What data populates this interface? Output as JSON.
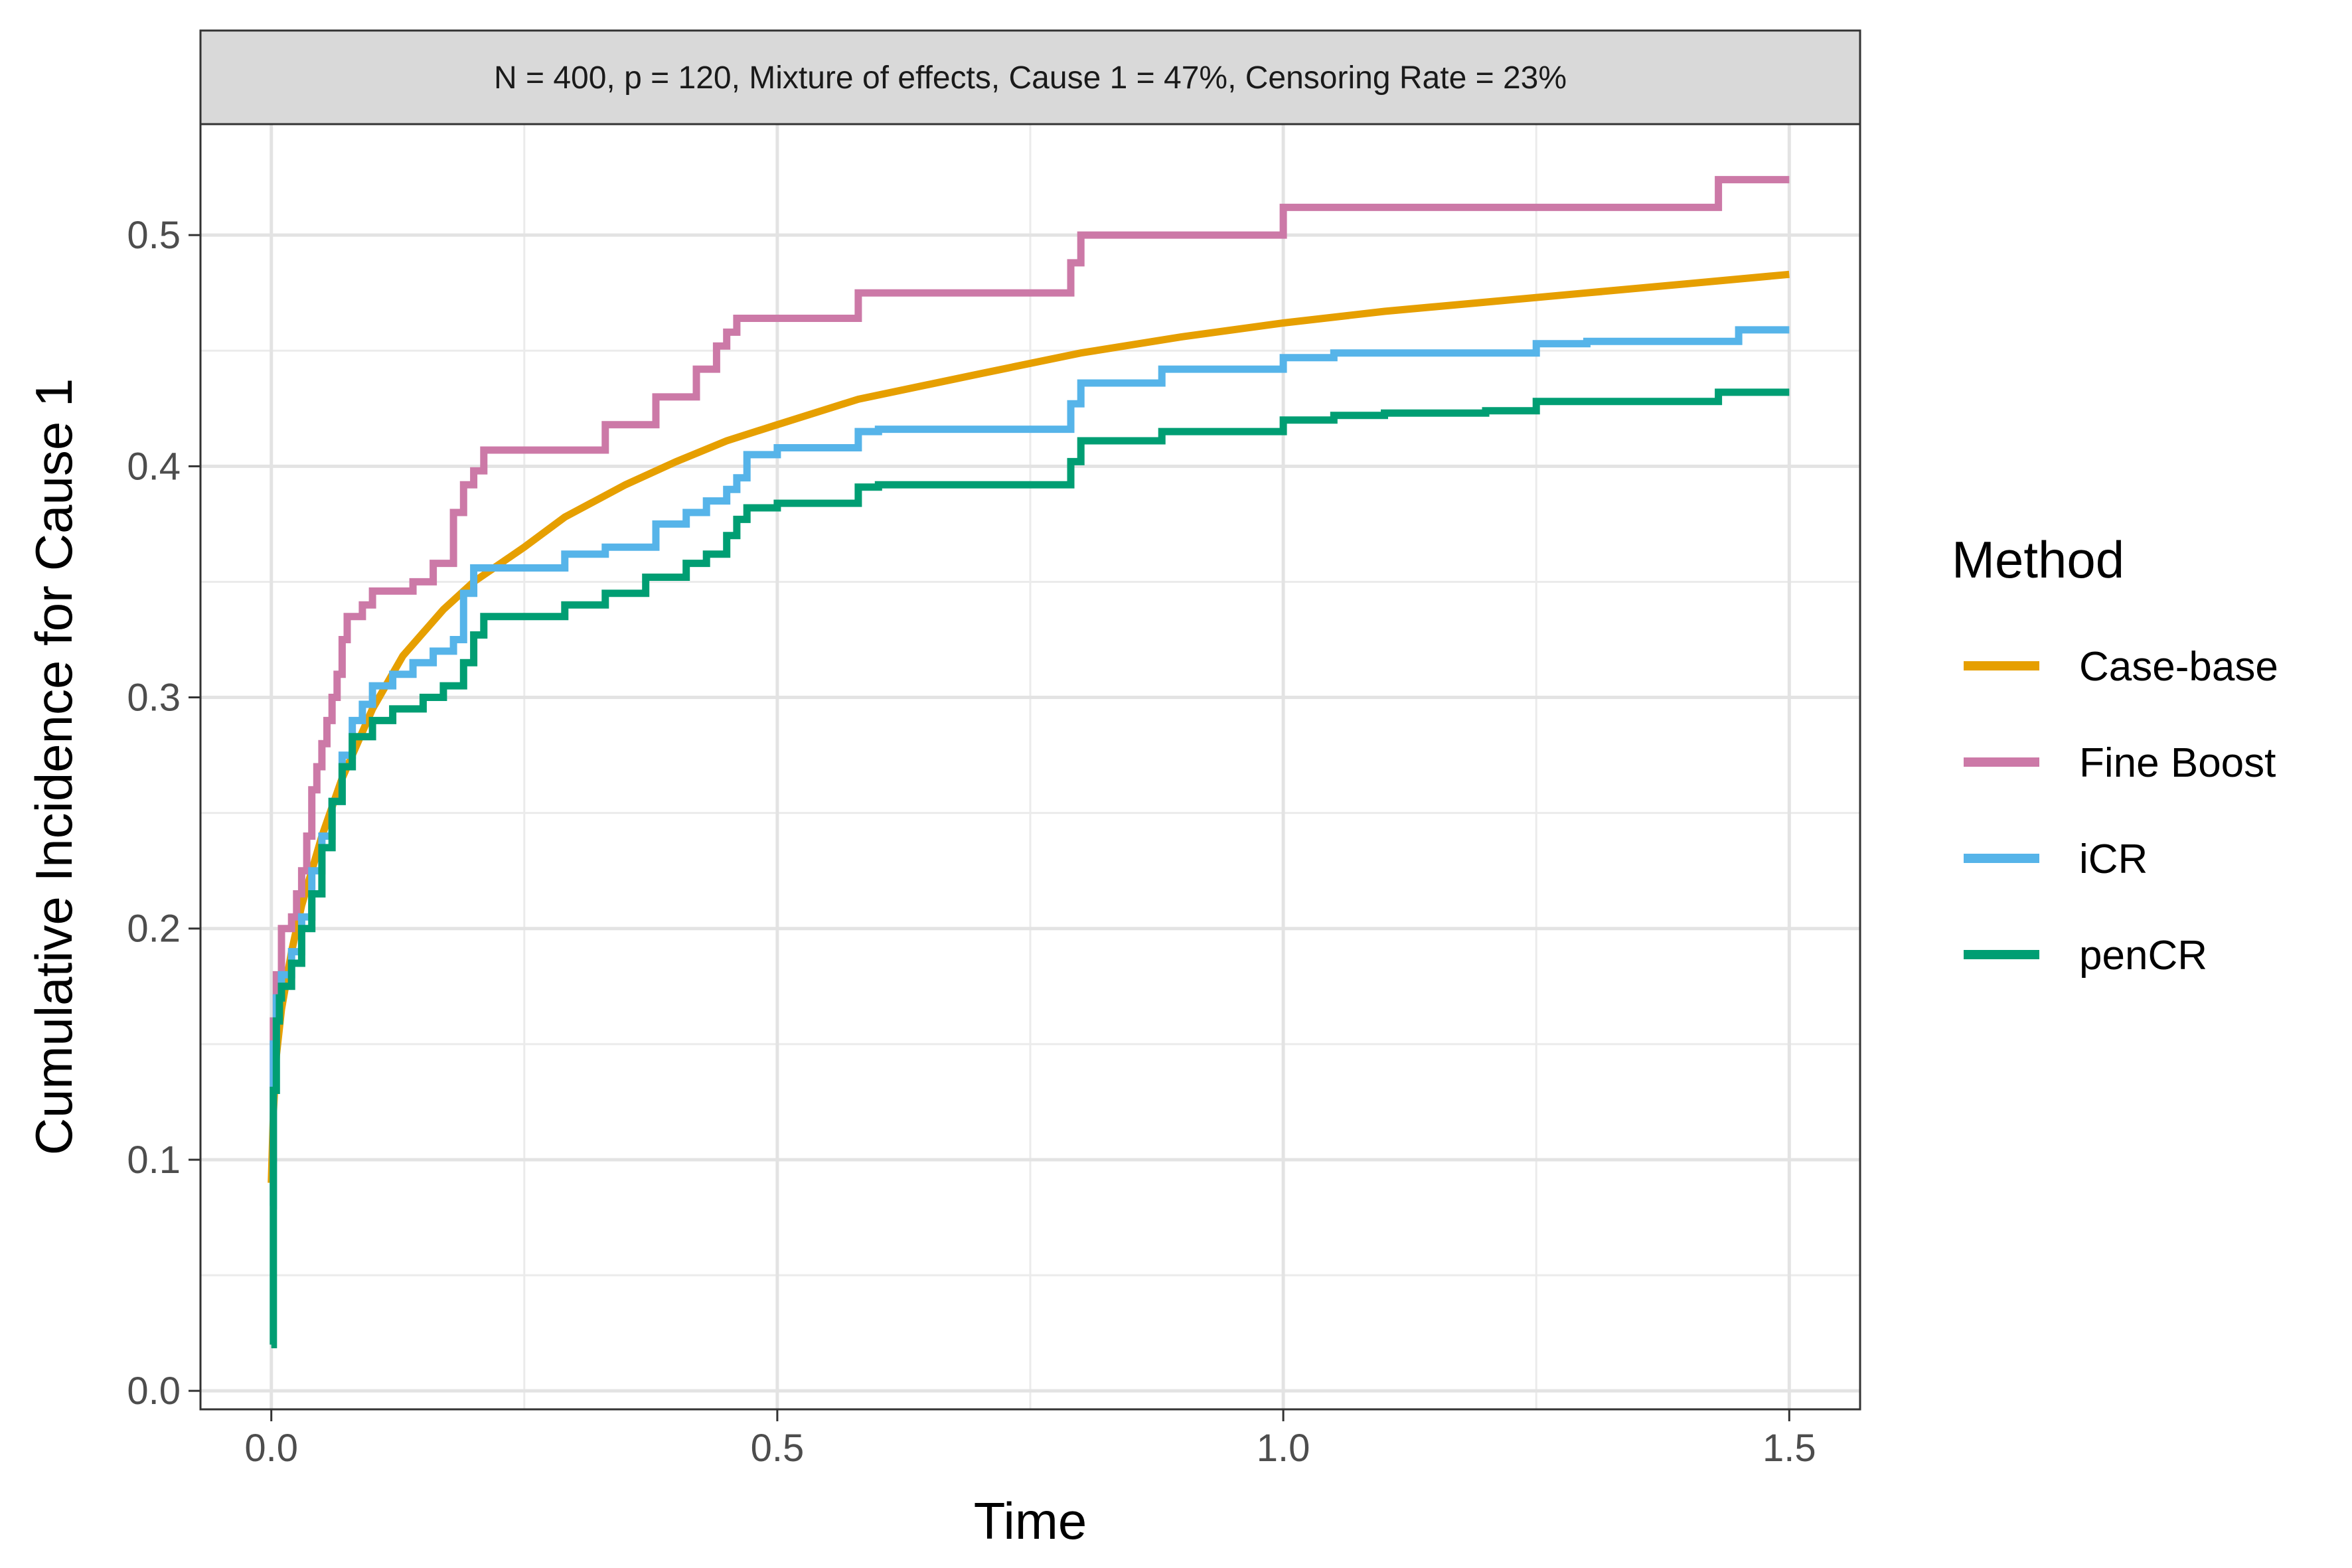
{
  "chart_data": {
    "type": "line",
    "facet_label": "N = 400, p = 120, Mixture of effects, Cause 1 = 47%, Censoring Rate = 23%",
    "xlabel": "Time",
    "ylabel": "Cumulative Incidence for Cause 1",
    "xlim": [
      -0.07,
      1.57
    ],
    "ylim": [
      -0.008,
      0.548
    ],
    "x_ticks": [
      0.0,
      0.5,
      1.0,
      1.5
    ],
    "x_tick_labels": [
      "0.0",
      "0.5",
      "1.0",
      "1.5"
    ],
    "y_ticks": [
      0.0,
      0.1,
      0.2,
      0.3,
      0.4,
      0.5
    ],
    "y_tick_labels": [
      "0.0",
      "0.1",
      "0.2",
      "0.3",
      "0.4",
      "0.5"
    ],
    "grid": true,
    "legend": {
      "title": "Method",
      "placement": "right",
      "entries": [
        "Case-base",
        "Fine Boost",
        "iCR",
        "penCR"
      ]
    },
    "colors": {
      "Case-base": "#E69F00",
      "Fine Boost": "#CC79A7",
      "iCR": "#56B4E9",
      "penCR": "#009E73"
    },
    "series": [
      {
        "name": "Case-base",
        "step": false,
        "x": [
          0.0,
          0.002,
          0.005,
          0.01,
          0.02,
          0.03,
          0.05,
          0.07,
          0.1,
          0.13,
          0.17,
          0.2,
          0.25,
          0.29,
          0.35,
          0.4,
          0.45,
          0.5,
          0.58,
          0.7,
          0.8,
          0.9,
          1.0,
          1.1,
          1.2,
          1.3,
          1.4,
          1.5
        ],
        "y": [
          0.09,
          0.12,
          0.145,
          0.165,
          0.19,
          0.21,
          0.24,
          0.265,
          0.295,
          0.318,
          0.338,
          0.35,
          0.365,
          0.378,
          0.392,
          0.402,
          0.411,
          0.418,
          0.429,
          0.44,
          0.449,
          0.456,
          0.462,
          0.467,
          0.471,
          0.475,
          0.479,
          0.483
        ]
      },
      {
        "name": "Fine Boost",
        "step": true,
        "x": [
          0.0,
          0.002,
          0.005,
          0.01,
          0.02,
          0.025,
          0.03,
          0.035,
          0.04,
          0.045,
          0.05,
          0.055,
          0.06,
          0.065,
          0.07,
          0.075,
          0.08,
          0.09,
          0.1,
          0.12,
          0.14,
          0.16,
          0.18,
          0.19,
          0.2,
          0.21,
          0.25,
          0.3,
          0.33,
          0.35,
          0.38,
          0.42,
          0.44,
          0.45,
          0.46,
          0.5,
          0.55,
          0.58,
          0.65,
          0.7,
          0.75,
          0.79,
          0.8,
          0.85,
          0.9,
          0.95,
          1.0,
          1.05,
          1.1,
          1.2,
          1.3,
          1.4,
          1.43,
          1.5
        ],
        "y": [
          0.1,
          0.16,
          0.18,
          0.2,
          0.205,
          0.215,
          0.225,
          0.24,
          0.26,
          0.27,
          0.28,
          0.29,
          0.3,
          0.31,
          0.325,
          0.335,
          0.335,
          0.34,
          0.346,
          0.346,
          0.35,
          0.358,
          0.38,
          0.392,
          0.398,
          0.407,
          0.407,
          0.407,
          0.418,
          0.418,
          0.43,
          0.442,
          0.452,
          0.458,
          0.464,
          0.464,
          0.464,
          0.475,
          0.475,
          0.475,
          0.475,
          0.488,
          0.5,
          0.5,
          0.5,
          0.5,
          0.512,
          0.512,
          0.512,
          0.512,
          0.512,
          0.512,
          0.524,
          0.524
        ]
      },
      {
        "name": "iCR",
        "step": true,
        "x": [
          0.0,
          0.002,
          0.005,
          0.01,
          0.02,
          0.03,
          0.04,
          0.05,
          0.06,
          0.07,
          0.08,
          0.09,
          0.1,
          0.12,
          0.14,
          0.16,
          0.18,
          0.19,
          0.2,
          0.25,
          0.29,
          0.33,
          0.38,
          0.41,
          0.43,
          0.45,
          0.46,
          0.47,
          0.5,
          0.55,
          0.58,
          0.6,
          0.65,
          0.7,
          0.75,
          0.79,
          0.8,
          0.85,
          0.88,
          0.95,
          1.0,
          1.05,
          1.1,
          1.2,
          1.25,
          1.3,
          1.4,
          1.45,
          1.5
        ],
        "y": [
          0.08,
          0.15,
          0.17,
          0.18,
          0.19,
          0.205,
          0.225,
          0.24,
          0.255,
          0.275,
          0.29,
          0.297,
          0.305,
          0.31,
          0.315,
          0.32,
          0.325,
          0.345,
          0.356,
          0.356,
          0.362,
          0.365,
          0.375,
          0.38,
          0.385,
          0.39,
          0.395,
          0.405,
          0.408,
          0.408,
          0.415,
          0.416,
          0.416,
          0.416,
          0.416,
          0.427,
          0.436,
          0.436,
          0.442,
          0.442,
          0.447,
          0.449,
          0.449,
          0.449,
          0.453,
          0.454,
          0.454,
          0.459,
          0.459
        ]
      },
      {
        "name": "penCR",
        "step": true,
        "x": [
          0.0,
          0.002,
          0.005,
          0.008,
          0.01,
          0.02,
          0.03,
          0.04,
          0.05,
          0.06,
          0.07,
          0.08,
          0.1,
          0.12,
          0.15,
          0.17,
          0.19,
          0.2,
          0.21,
          0.25,
          0.29,
          0.33,
          0.37,
          0.41,
          0.43,
          0.45,
          0.46,
          0.47,
          0.5,
          0.55,
          0.58,
          0.6,
          0.65,
          0.7,
          0.75,
          0.79,
          0.8,
          0.85,
          0.88,
          0.95,
          1.0,
          1.05,
          1.1,
          1.2,
          1.25,
          1.3,
          1.4,
          1.43,
          1.5
        ],
        "y": [
          0.02,
          0.13,
          0.16,
          0.17,
          0.175,
          0.185,
          0.2,
          0.215,
          0.235,
          0.255,
          0.27,
          0.283,
          0.29,
          0.295,
          0.3,
          0.305,
          0.315,
          0.327,
          0.335,
          0.335,
          0.34,
          0.345,
          0.352,
          0.358,
          0.362,
          0.37,
          0.377,
          0.382,
          0.384,
          0.384,
          0.391,
          0.392,
          0.392,
          0.392,
          0.392,
          0.402,
          0.411,
          0.411,
          0.415,
          0.415,
          0.42,
          0.422,
          0.423,
          0.424,
          0.428,
          0.428,
          0.428,
          0.432,
          0.432
        ]
      }
    ]
  }
}
